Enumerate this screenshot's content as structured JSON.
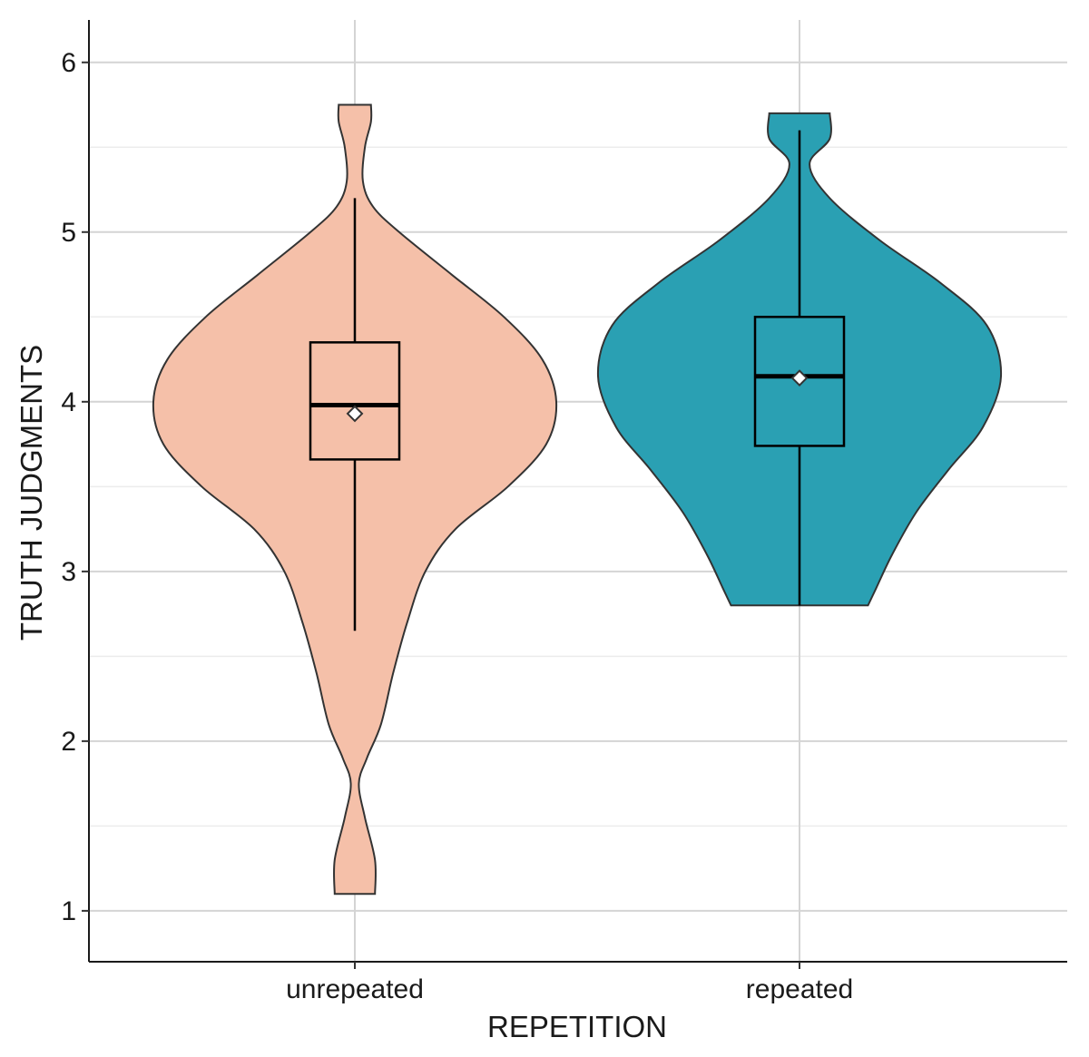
{
  "chart_data": {
    "type": "violin",
    "title": "",
    "xlabel": "REPETITION",
    "ylabel": "TRUTH JUDGMENTS",
    "ylim": [
      0.7,
      6.25
    ],
    "yticks": [
      "1",
      "2",
      "3",
      "4",
      "5",
      "6"
    ],
    "grid": true,
    "categories": [
      "unrepeated",
      "repeated"
    ],
    "series": [
      {
        "name": "unrepeated",
        "color": "#F5C0A9",
        "violin_min": 1.1,
        "violin_max": 5.75,
        "density_profile": [
          [
            1.1,
            0.1
          ],
          [
            1.3,
            0.1
          ],
          [
            1.55,
            0.05
          ],
          [
            1.75,
            0.02
          ],
          [
            1.9,
            0.06
          ],
          [
            2.1,
            0.13
          ],
          [
            2.4,
            0.19
          ],
          [
            2.7,
            0.26
          ],
          [
            3.0,
            0.35
          ],
          [
            3.25,
            0.5
          ],
          [
            3.5,
            0.76
          ],
          [
            3.75,
            0.95
          ],
          [
            4.0,
            1.0
          ],
          [
            4.25,
            0.93
          ],
          [
            4.5,
            0.74
          ],
          [
            4.75,
            0.48
          ],
          [
            5.0,
            0.22
          ],
          [
            5.15,
            0.09
          ],
          [
            5.3,
            0.04
          ],
          [
            5.5,
            0.05
          ],
          [
            5.65,
            0.08
          ],
          [
            5.75,
            0.08
          ]
        ],
        "box": {
          "q1": 3.66,
          "median": 3.98,
          "q3": 4.35,
          "whisker_low": 2.65,
          "whisker_high": 5.2,
          "mean": 3.93
        }
      },
      {
        "name": "repeated",
        "color": "#2AA0B3",
        "violin_min": 2.8,
        "violin_max": 5.7,
        "density_profile": [
          [
            2.8,
            0.34
          ],
          [
            2.9,
            0.38
          ],
          [
            3.1,
            0.46
          ],
          [
            3.35,
            0.58
          ],
          [
            3.6,
            0.74
          ],
          [
            3.85,
            0.91
          ],
          [
            4.15,
            1.0
          ],
          [
            4.45,
            0.93
          ],
          [
            4.7,
            0.7
          ],
          [
            4.95,
            0.4
          ],
          [
            5.2,
            0.15
          ],
          [
            5.4,
            0.05
          ],
          [
            5.55,
            0.15
          ],
          [
            5.7,
            0.15
          ]
        ],
        "box": {
          "q1": 3.74,
          "median": 4.15,
          "q3": 4.5,
          "whisker_low": 2.8,
          "whisker_high": 5.6,
          "mean": 4.14
        }
      }
    ]
  }
}
